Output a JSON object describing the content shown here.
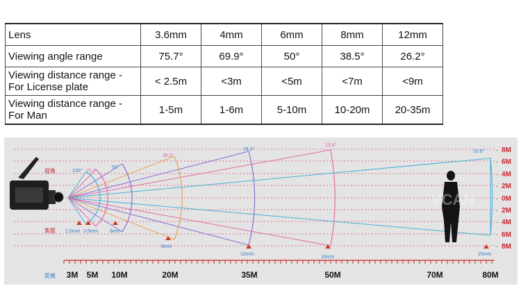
{
  "table": {
    "header": [
      "Lens",
      "3.6mm",
      "4mm",
      "6mm",
      "8mm",
      "12mm"
    ],
    "rows": [
      {
        "label": "Viewing angle range",
        "values": [
          "75.7°",
          "69.9°",
          "50°",
          "38.5°",
          "26.2°"
        ]
      },
      {
        "label_lines": [
          "Viewing distance range -",
          "For License plate"
        ],
        "values": [
          "< 2.5m",
          "<3m",
          "<5m",
          "<7m",
          "<9m"
        ]
      },
      {
        "label_lines": [
          "Viewing distance range -",
          "For Man"
        ],
        "values": [
          "1-5m",
          "1-6m",
          "5-10m",
          "10-20m",
          "20-35m"
        ]
      }
    ]
  },
  "diagram": {
    "angle_caption": "视角",
    "focal_caption": "焦距",
    "distance_caption": "距离",
    "angles": [
      "100°",
      "75.7°",
      "50°",
      "38.5°",
      "26.2°",
      "19.8°",
      "10.6°"
    ],
    "focal_lengths": [
      "2.5mm",
      "3.6mm",
      "6mm",
      "8mm",
      "12mm",
      "16mm",
      "25mm"
    ],
    "height_scale": [
      "8M",
      "6M",
      "4M",
      "2M",
      "0M",
      "2M",
      "4M",
      "6M",
      "8M"
    ],
    "distance_labels": [
      "3M",
      "5M",
      "10M",
      "20M",
      "35M",
      "50M",
      "70M",
      "80M"
    ],
    "watermark": "VCAN",
    "colors": {
      "background": "#e4e4e4",
      "dashed_guides": "#d9466e",
      "ruler_red": "#c8262b",
      "focal_marker": "#cc3a22",
      "beam_blue": "#45b0d8",
      "beam_pink": "#e06aa8",
      "beam_orange": "#e9a35a",
      "beam_purple": "#8a6ed0",
      "label_blue": "#3a7fc7"
    }
  }
}
